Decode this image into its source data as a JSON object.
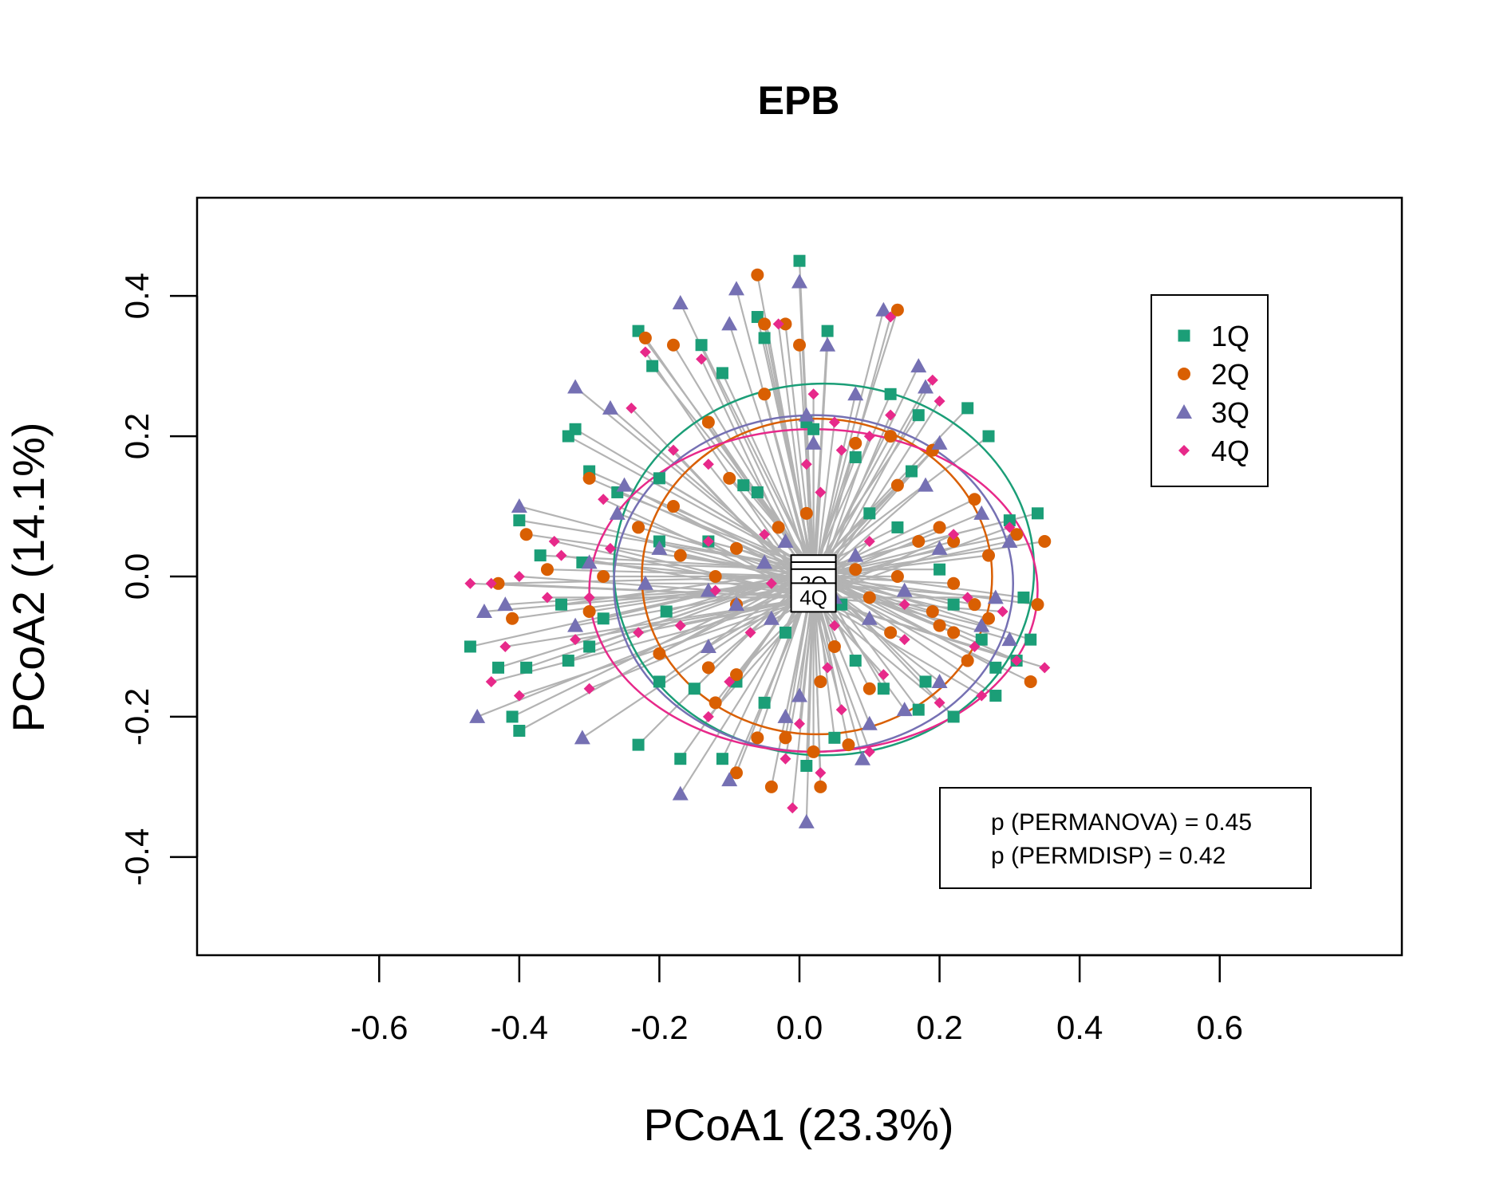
{
  "chart_data": {
    "type": "scatter",
    "title": "EPB",
    "xlabel": "PCoA1 (23.3%)",
    "ylabel": "PCoA2 (14.1%)",
    "xlim": [
      -0.86,
      0.86
    ],
    "ylim": [
      -0.54,
      0.54
    ],
    "x_ticks": [
      -0.6,
      -0.4,
      -0.2,
      0.0,
      0.2,
      0.4,
      0.6
    ],
    "x_tick_labels": [
      "-0.6",
      "-0.4",
      "-0.2",
      "0.0",
      "0.2",
      "0.4",
      "0.6"
    ],
    "y_ticks": [
      -0.4,
      -0.2,
      0.0,
      0.2,
      0.4
    ],
    "y_tick_labels": [
      "-0.4",
      "-0.2",
      "0.0",
      "0.2",
      "0.4"
    ],
    "legend_position": "top-right",
    "grid": false,
    "colors": {
      "1Q": "#1b9e77",
      "2Q": "#d95f02",
      "3Q": "#7570b3",
      "4Q": "#e7298a",
      "spider": "#b3b3b3"
    },
    "groups": [
      {
        "name": "1Q",
        "marker": "square",
        "centroid": [
          0.02,
          0.01
        ],
        "ellipse": {
          "cx": 0.035,
          "cy": 0.01,
          "rx": 0.3,
          "ry": 0.265
        },
        "points": [
          [
            0.0,
            0.45
          ],
          [
            -0.23,
            0.35
          ],
          [
            -0.21,
            0.3
          ],
          [
            -0.14,
            0.33
          ],
          [
            -0.06,
            0.37
          ],
          [
            -0.05,
            0.34
          ],
          [
            0.04,
            0.35
          ],
          [
            -0.11,
            0.29
          ],
          [
            -0.33,
            0.2
          ],
          [
            -0.32,
            0.21
          ],
          [
            0.13,
            0.26
          ],
          [
            0.24,
            0.24
          ],
          [
            0.27,
            0.2
          ],
          [
            0.17,
            0.23
          ],
          [
            0.01,
            0.22
          ],
          [
            0.02,
            0.21
          ],
          [
            0.08,
            0.17
          ],
          [
            0.16,
            0.15
          ],
          [
            -0.3,
            0.15
          ],
          [
            -0.2,
            0.14
          ],
          [
            -0.08,
            0.13
          ],
          [
            -0.06,
            0.12
          ],
          [
            -0.26,
            0.12
          ],
          [
            0.3,
            0.08
          ],
          [
            0.34,
            0.09
          ],
          [
            -0.4,
            0.08
          ],
          [
            -0.37,
            0.03
          ],
          [
            -0.31,
            0.02
          ],
          [
            -0.2,
            0.05
          ],
          [
            -0.13,
            0.05
          ],
          [
            0.14,
            0.07
          ],
          [
            0.1,
            0.09
          ],
          [
            -0.34,
            -0.04
          ],
          [
            -0.28,
            -0.06
          ],
          [
            -0.19,
            -0.05
          ],
          [
            0.06,
            -0.04
          ],
          [
            0.22,
            -0.04
          ],
          [
            0.32,
            -0.03
          ],
          [
            -0.47,
            -0.1
          ],
          [
            -0.43,
            -0.13
          ],
          [
            -0.39,
            -0.13
          ],
          [
            -0.33,
            -0.12
          ],
          [
            -0.3,
            -0.1
          ],
          [
            -0.2,
            -0.15
          ],
          [
            -0.15,
            -0.16
          ],
          [
            -0.09,
            -0.15
          ],
          [
            0.12,
            -0.16
          ],
          [
            0.18,
            -0.15
          ],
          [
            0.28,
            -0.13
          ],
          [
            0.31,
            -0.12
          ],
          [
            0.33,
            -0.09
          ],
          [
            -0.41,
            -0.2
          ],
          [
            -0.4,
            -0.22
          ],
          [
            -0.23,
            -0.24
          ],
          [
            -0.17,
            -0.26
          ],
          [
            -0.11,
            -0.26
          ],
          [
            -0.05,
            -0.18
          ],
          [
            0.01,
            -0.27
          ],
          [
            0.05,
            -0.23
          ],
          [
            0.17,
            -0.19
          ],
          [
            0.22,
            -0.2
          ],
          [
            0.28,
            -0.17
          ],
          [
            0.08,
            -0.12
          ],
          [
            -0.02,
            -0.08
          ],
          [
            0.2,
            0.01
          ],
          [
            0.26,
            -0.09
          ]
        ]
      },
      {
        "name": "2Q",
        "marker": "circle",
        "centroid": [
          0.02,
          0.0
        ],
        "ellipse": {
          "cx": 0.025,
          "cy": 0.0,
          "rx": 0.25,
          "ry": 0.225
        },
        "points": [
          [
            -0.06,
            0.43
          ],
          [
            -0.05,
            0.36
          ],
          [
            -0.02,
            0.36
          ],
          [
            0.14,
            0.38
          ],
          [
            -0.22,
            0.34
          ],
          [
            -0.18,
            0.33
          ],
          [
            0.0,
            0.33
          ],
          [
            -0.05,
            0.26
          ],
          [
            -0.13,
            0.22
          ],
          [
            0.08,
            0.19
          ],
          [
            0.13,
            0.2
          ],
          [
            0.19,
            0.18
          ],
          [
            -0.3,
            0.14
          ],
          [
            -0.1,
            0.14
          ],
          [
            -0.18,
            0.1
          ],
          [
            0.14,
            0.13
          ],
          [
            0.25,
            0.11
          ],
          [
            -0.39,
            0.06
          ],
          [
            -0.23,
            0.07
          ],
          [
            -0.17,
            0.03
          ],
          [
            -0.09,
            0.04
          ],
          [
            -0.03,
            0.07
          ],
          [
            0.01,
            0.09
          ],
          [
            0.17,
            0.05
          ],
          [
            0.2,
            0.07
          ],
          [
            0.22,
            0.05
          ],
          [
            0.27,
            0.03
          ],
          [
            0.31,
            0.06
          ],
          [
            0.35,
            0.05
          ],
          [
            -0.43,
            -0.01
          ],
          [
            -0.36,
            0.01
          ],
          [
            -0.28,
            0.0
          ],
          [
            -0.12,
            0.0
          ],
          [
            0.08,
            0.01
          ],
          [
            0.14,
            0.0
          ],
          [
            0.22,
            -0.01
          ],
          [
            -0.41,
            -0.06
          ],
          [
            -0.3,
            -0.05
          ],
          [
            -0.09,
            -0.04
          ],
          [
            0.02,
            -0.04
          ],
          [
            0.1,
            -0.03
          ],
          [
            0.19,
            -0.05
          ],
          [
            0.22,
            -0.08
          ],
          [
            0.27,
            -0.06
          ],
          [
            0.34,
            -0.04
          ],
          [
            -0.2,
            -0.11
          ],
          [
            -0.13,
            -0.13
          ],
          [
            -0.09,
            -0.14
          ],
          [
            0.05,
            -0.1
          ],
          [
            0.13,
            -0.08
          ],
          [
            0.24,
            -0.12
          ],
          [
            0.33,
            -0.15
          ],
          [
            -0.12,
            -0.18
          ],
          [
            0.03,
            -0.15
          ],
          [
            0.1,
            -0.16
          ],
          [
            -0.06,
            -0.23
          ],
          [
            -0.02,
            -0.23
          ],
          [
            0.07,
            -0.24
          ],
          [
            -0.09,
            -0.28
          ],
          [
            -0.04,
            -0.3
          ],
          [
            0.03,
            -0.3
          ],
          [
            0.02,
            -0.25
          ],
          [
            0.2,
            -0.07
          ],
          [
            0.25,
            -0.04
          ]
        ]
      },
      {
        "name": "3Q",
        "marker": "triangle",
        "centroid": [
          0.02,
          -0.01
        ],
        "ellipse": {
          "cx": 0.02,
          "cy": -0.01,
          "rx": 0.285,
          "ry": 0.24
        },
        "points": [
          [
            0.0,
            0.42
          ],
          [
            -0.09,
            0.41
          ],
          [
            -0.17,
            0.39
          ],
          [
            0.12,
            0.38
          ],
          [
            -0.1,
            0.36
          ],
          [
            0.04,
            0.33
          ],
          [
            -0.32,
            0.27
          ],
          [
            -0.27,
            0.24
          ],
          [
            0.17,
            0.3
          ],
          [
            0.18,
            0.27
          ],
          [
            0.01,
            0.23
          ],
          [
            0.08,
            0.26
          ],
          [
            0.2,
            0.19
          ],
          [
            0.02,
            0.19
          ],
          [
            -0.25,
            0.13
          ],
          [
            -0.26,
            0.09
          ],
          [
            -0.4,
            0.1
          ],
          [
            0.18,
            0.13
          ],
          [
            0.26,
            0.09
          ],
          [
            0.3,
            0.05
          ],
          [
            -0.3,
            0.02
          ],
          [
            -0.2,
            0.04
          ],
          [
            -0.02,
            0.05
          ],
          [
            0.08,
            0.03
          ],
          [
            0.2,
            0.04
          ],
          [
            -0.45,
            -0.05
          ],
          [
            -0.42,
            -0.04
          ],
          [
            -0.22,
            -0.01
          ],
          [
            -0.13,
            -0.02
          ],
          [
            -0.09,
            -0.04
          ],
          [
            0.05,
            -0.03
          ],
          [
            0.15,
            -0.02
          ],
          [
            0.28,
            -0.03
          ],
          [
            -0.32,
            -0.07
          ],
          [
            -0.13,
            -0.1
          ],
          [
            -0.04,
            -0.06
          ],
          [
            0.1,
            -0.06
          ],
          [
            0.26,
            -0.07
          ],
          [
            0.3,
            -0.09
          ],
          [
            -0.46,
            -0.2
          ],
          [
            -0.31,
            -0.23
          ],
          [
            -0.17,
            -0.31
          ],
          [
            -0.1,
            -0.29
          ],
          [
            -0.02,
            -0.2
          ],
          [
            0.0,
            -0.17
          ],
          [
            0.1,
            -0.21
          ],
          [
            0.15,
            -0.19
          ],
          [
            0.09,
            -0.26
          ],
          [
            0.01,
            -0.35
          ],
          [
            0.2,
            -0.15
          ],
          [
            -0.05,
            0.02
          ]
        ]
      },
      {
        "name": "4Q",
        "marker": "diamond",
        "centroid": [
          0.02,
          -0.03
        ],
        "ellipse": {
          "cx": 0.02,
          "cy": -0.02,
          "rx": 0.32,
          "ry": 0.23
        },
        "points": [
          [
            -0.03,
            0.36
          ],
          [
            0.13,
            0.37
          ],
          [
            -0.22,
            0.32
          ],
          [
            -0.14,
            0.31
          ],
          [
            -0.24,
            0.24
          ],
          [
            0.19,
            0.28
          ],
          [
            0.02,
            0.26
          ],
          [
            0.13,
            0.23
          ],
          [
            0.05,
            0.22
          ],
          [
            0.2,
            0.25
          ],
          [
            0.1,
            0.2
          ],
          [
            -0.18,
            0.18
          ],
          [
            -0.13,
            0.16
          ],
          [
            0.01,
            0.16
          ],
          [
            0.06,
            0.18
          ],
          [
            -0.28,
            0.11
          ],
          [
            0.03,
            0.12
          ],
          [
            -0.35,
            0.05
          ],
          [
            -0.34,
            0.03
          ],
          [
            -0.27,
            0.04
          ],
          [
            -0.13,
            0.05
          ],
          [
            -0.05,
            0.06
          ],
          [
            0.1,
            0.05
          ],
          [
            0.3,
            0.07
          ],
          [
            0.22,
            0.06
          ],
          [
            -0.44,
            -0.01
          ],
          [
            -0.4,
            0.0
          ],
          [
            -0.47,
            -0.01
          ],
          [
            -0.36,
            -0.03
          ],
          [
            -0.3,
            -0.03
          ],
          [
            -0.12,
            -0.02
          ],
          [
            -0.04,
            -0.01
          ],
          [
            0.03,
            -0.02
          ],
          [
            0.15,
            -0.04
          ],
          [
            0.24,
            -0.03
          ],
          [
            0.29,
            -0.05
          ],
          [
            0.35,
            -0.13
          ],
          [
            -0.42,
            -0.1
          ],
          [
            -0.32,
            -0.09
          ],
          [
            -0.23,
            -0.08
          ],
          [
            -0.17,
            -0.07
          ],
          [
            -0.07,
            -0.08
          ],
          [
            0.05,
            -0.07
          ],
          [
            0.15,
            -0.09
          ],
          [
            0.25,
            -0.1
          ],
          [
            0.31,
            -0.12
          ],
          [
            -0.44,
            -0.15
          ],
          [
            -0.4,
            -0.17
          ],
          [
            -0.3,
            -0.16
          ],
          [
            -0.1,
            -0.15
          ],
          [
            0.04,
            -0.13
          ],
          [
            0.12,
            -0.14
          ],
          [
            0.2,
            -0.18
          ],
          [
            0.26,
            -0.17
          ],
          [
            -0.13,
            -0.2
          ],
          [
            0.0,
            -0.21
          ],
          [
            0.06,
            -0.19
          ],
          [
            -0.02,
            -0.26
          ],
          [
            0.1,
            -0.25
          ],
          [
            -0.01,
            -0.33
          ],
          [
            0.03,
            -0.28
          ]
        ]
      }
    ],
    "legend": [
      "1Q",
      "2Q",
      "3Q",
      "4Q"
    ],
    "annotations": [
      "p (PERMANOVA) = 0.45",
      "p (PERMDISP) = 0.42"
    ]
  }
}
